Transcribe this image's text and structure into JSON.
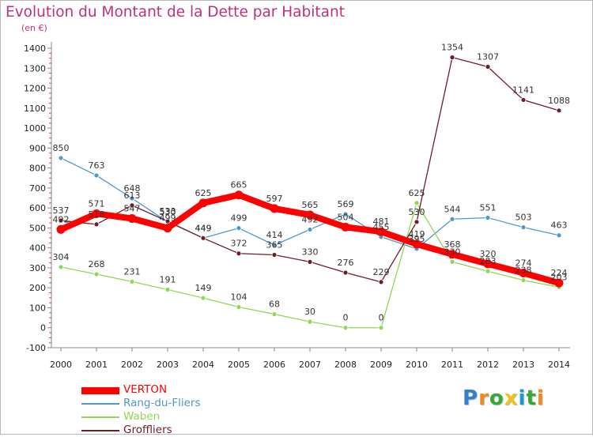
{
  "chart_data": {
    "type": "line",
    "title": "Evolution du Montant de la Dette par Habitant",
    "subtitle": "(en €)",
    "x": [
      2000,
      2001,
      2002,
      2003,
      2004,
      2005,
      2006,
      2007,
      2008,
      2009,
      2010,
      2011,
      2012,
      2013,
      2014
    ],
    "ylim": [
      -100,
      1400
    ],
    "yticks": [
      -100,
      0,
      100,
      200,
      300,
      400,
      500,
      600,
      700,
      800,
      900,
      1000,
      1100,
      1200,
      1300,
      1400
    ],
    "grid": false,
    "legend_position": "bottom-left",
    "series": [
      {
        "name": "VERTON",
        "color": "#ff0000",
        "values": [
          492,
          571,
          547,
          499,
          625,
          665,
          597,
          565,
          504,
          481,
          419,
          368,
          320,
          274,
          224
        ]
      },
      {
        "name": "Rang-du-Fliers",
        "color": "#4f97cc",
        "values": [
          850,
          763,
          648,
          530,
          449,
          499,
          414,
          492,
          569,
          455,
          395,
          544,
          551,
          503,
          463
        ]
      },
      {
        "name": "Waben",
        "color": "#8fd853",
        "values": [
          304,
          268,
          231,
          191,
          149,
          104,
          68,
          30,
          0,
          0,
          625,
          330,
          283,
          238,
          203
        ]
      },
      {
        "name": "Groffliers",
        "color": "#6e1c27",
        "values": [
          537,
          518,
          613,
          533,
          449,
          372,
          365,
          330,
          276,
          229,
          530,
          1354,
          1307,
          1141,
          1088
        ]
      }
    ],
    "labels": [
      {
        "series": 0,
        "values": [
          492,
          571,
          547,
          499,
          625,
          665,
          597,
          565,
          504,
          481,
          419,
          368,
          320,
          274,
          224
        ]
      },
      {
        "series": 1,
        "values": [
          850,
          763,
          648,
          530,
          449,
          499,
          414,
          492,
          569,
          455,
          395,
          544,
          551,
          503,
          463
        ]
      },
      {
        "series": 2,
        "values": [
          304,
          268,
          231,
          191,
          149,
          104,
          68,
          30,
          0,
          0,
          625,
          330,
          283,
          238,
          203
        ]
      },
      {
        "series": 3,
        "values": [
          537,
          518,
          613,
          533,
          449,
          372,
          365,
          330,
          276,
          229,
          530,
          1354,
          1307,
          1141,
          1088
        ]
      }
    ]
  },
  "logo": {
    "letters": [
      "P",
      "r",
      "o",
      "x",
      "i",
      "t",
      "i"
    ],
    "colors": [
      "#2f7fd4",
      "#f08a1c",
      "#36a837",
      "#f0c21c",
      "#1c9ad0",
      "#36a837",
      "#f08a1c"
    ]
  }
}
